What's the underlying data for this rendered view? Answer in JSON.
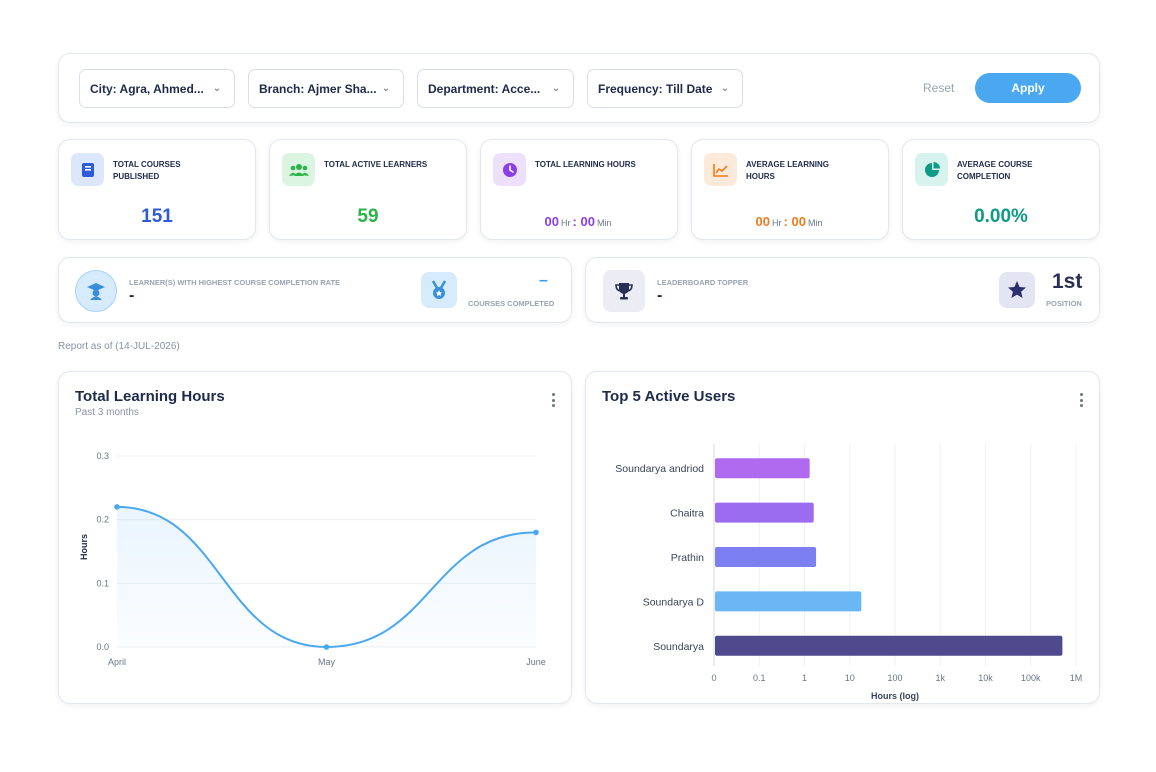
{
  "filters": {
    "city": "City: Agra, Ahmed...",
    "branch": "Branch: Ajmer Sha...",
    "department": "Department: Acce...",
    "frequency": "Frequency: Till Date",
    "reset_label": "Reset",
    "apply_label": "Apply"
  },
  "stats": {
    "courses": {
      "label": "TOTAL COURSES PUBLISHED",
      "value": "151",
      "color": "#2e5bd8",
      "icon": "book-icon"
    },
    "learners": {
      "label": "TOTAL ACTIVE LEARNERS",
      "value": "59",
      "color": "#2cb34a",
      "icon": "users-icon"
    },
    "learning_hours": {
      "label": "TOTAL LEARNING HOURS",
      "hours": "00",
      "hr_unit": "Hr",
      "sep": ":",
      "minutes": "00",
      "min_unit": "Min",
      "color": "#8a3ee8",
      "icon": "clock-icon"
    },
    "avg_hours": {
      "label": "AVERAGE LEARNING HOURS",
      "hours": "00",
      "hr_unit": "Hr",
      "sep": ":",
      "minutes": "00",
      "min_unit": "Min",
      "color": "#f07a1a",
      "icon": "line-chart-icon"
    },
    "completion": {
      "label": "AVERAGE COURSE COMPLETION",
      "value": "0.00%",
      "color": "#0e9a84",
      "icon": "pie-chart-icon"
    }
  },
  "highest_completion": {
    "label": "LEARNER(S) WITH HIGHEST COURSE COMPLETION RATE",
    "value": "-",
    "courses_value": "–",
    "courses_label": "COURSES COMPLETED",
    "icon": "graduate-icon",
    "medal_icon": "medal-icon"
  },
  "leaderboard": {
    "label": "LEADERBOARD TOPPER",
    "value": "-",
    "position_value": "1st",
    "position_label": "POSITION",
    "icon": "trophy-icon",
    "star_icon": "star-icon"
  },
  "report_text": "Report as of (14-JUL-2026)",
  "charts": {
    "hours": {
      "title": "Total Learning Hours",
      "subtitle": "Past 3 months"
    },
    "users": {
      "title": "Top 5 Active Users"
    }
  },
  "chart_data": [
    {
      "type": "line",
      "title": "Total Learning Hours",
      "subtitle": "Past 3 months",
      "categories": [
        "April",
        "May",
        "June"
      ],
      "values": [
        0.22,
        0.0,
        0.18
      ],
      "ylabel": "Hours",
      "xlabel": "",
      "ylim": [
        0,
        0.3
      ],
      "yticks": [
        "0.0",
        "0.1",
        "0.2",
        "0.3"
      ],
      "color": "#4aa8f0",
      "grid": true
    },
    {
      "type": "bar",
      "orientation": "horizontal",
      "title": "Top 5 Active Users",
      "categories": [
        "Soundarya andriod",
        "Chaitra",
        "Prathin",
        "Soundarya D",
        "Soundarya"
      ],
      "values": [
        1.3,
        1.6,
        1.8,
        18,
        500000
      ],
      "colors": [
        "#b06af0",
        "#9b6cf0",
        "#7b7ff0",
        "#6bb6f5",
        "#4f4a8e"
      ],
      "xlabel": "Hours (log)",
      "xscale": "log",
      "xticks": [
        "0",
        "0.1",
        "1",
        "10",
        "100",
        "1k",
        "10k",
        "100k",
        "1M"
      ],
      "grid": true
    }
  ]
}
